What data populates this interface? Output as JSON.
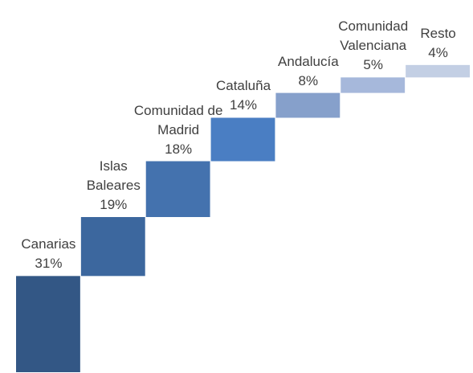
{
  "chart_data": {
    "type": "waterfall",
    "categories": [
      "Canarias",
      "Islas Baleares",
      "Comunidad de Madrid",
      "Cataluña",
      "Andalucía",
      "Comunidad Valenciana",
      "Resto"
    ],
    "values": [
      31,
      19,
      18,
      14,
      8,
      5,
      4
    ],
    "value_labels": [
      "31%",
      "19%",
      "18%",
      "14%",
      "8%",
      "5%",
      "4%"
    ],
    "colors": [
      "#335785",
      "#3c679e",
      "#4472ae",
      "#4a7ec3",
      "#86a0cb",
      "#a6b8db",
      "#c3cfe4"
    ],
    "ylim": [
      0,
      100
    ]
  }
}
